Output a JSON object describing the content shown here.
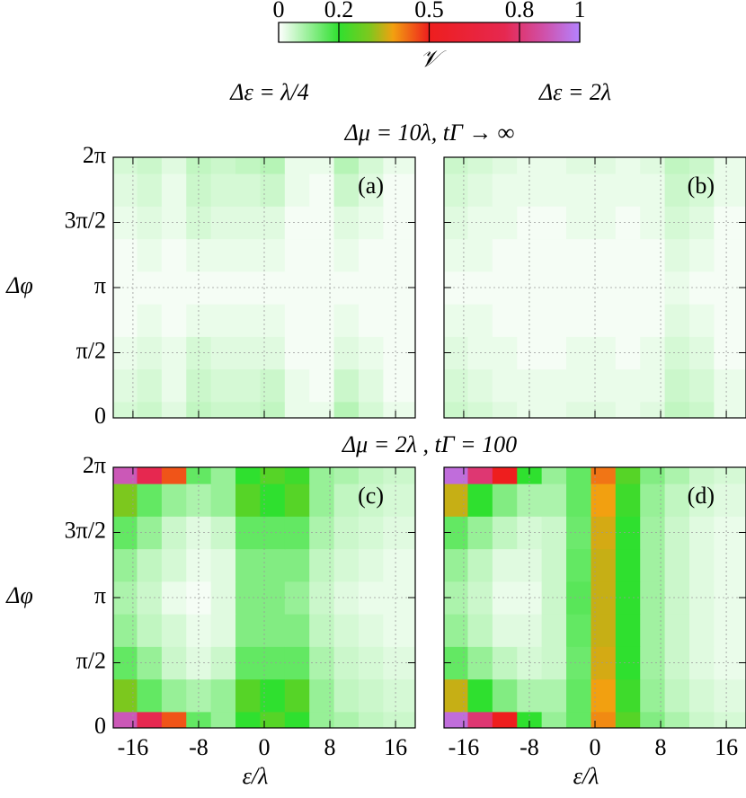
{
  "figure": {
    "colorbar": {
      "label": "𝒱",
      "lim": [
        0,
        1
      ],
      "ticks": [
        0,
        0.2,
        0.5,
        0.8,
        1
      ]
    },
    "colormap": [
      [
        0,
        "#ffffff"
      ],
      [
        0.2,
        "#2fe02f"
      ],
      [
        0.3,
        "#7cc81e"
      ],
      [
        0.38,
        "#f2a010"
      ],
      [
        0.5,
        "#ee1e1e"
      ],
      [
        0.75,
        "#e62850"
      ],
      [
        0.88,
        "#d050a8"
      ],
      [
        1,
        "#b482ff"
      ]
    ],
    "column_titles": [
      "Δε = λ/4",
      "Δε = 2λ"
    ],
    "row_titles": [
      "Δμ = 10λ, tΓ → ∞",
      "Δμ = 2λ , tΓ = 100"
    ]
  },
  "chart_data": [
    {
      "type": "heatmap",
      "label": "(a)",
      "ylabel": "Δφ",
      "x": [
        -17,
        -14,
        -11,
        -8,
        -5,
        -2,
        1,
        4,
        7,
        10,
        13,
        16
      ],
      "y": [
        0,
        0.785,
        1.571,
        2.356,
        3.142,
        3.927,
        4.712,
        5.498,
        6.283
      ],
      "z": [
        [
          0.04,
          0.05,
          0.03,
          0.06,
          0.05,
          0.05,
          0.06,
          0.02,
          0.02,
          0.07,
          0.04,
          0.02
        ],
        [
          0.03,
          0.04,
          0.02,
          0.05,
          0.04,
          0.04,
          0.05,
          0.02,
          0.01,
          0.05,
          0.03,
          0.01
        ],
        [
          0.02,
          0.03,
          0.02,
          0.04,
          0.03,
          0.03,
          0.03,
          0.01,
          0.01,
          0.03,
          0.02,
          0.01
        ],
        [
          0.01,
          0.02,
          0.01,
          0.02,
          0.02,
          0.02,
          0.02,
          0.01,
          0.01,
          0.02,
          0.01,
          0.01
        ],
        [
          0.01,
          0.01,
          0.01,
          0.01,
          0.01,
          0.01,
          0.01,
          0.01,
          0.01,
          0.01,
          0.01,
          0.01
        ],
        [
          0.01,
          0.02,
          0.01,
          0.02,
          0.02,
          0.02,
          0.02,
          0.01,
          0.01,
          0.02,
          0.01,
          0.01
        ],
        [
          0.02,
          0.03,
          0.02,
          0.04,
          0.03,
          0.03,
          0.03,
          0.01,
          0.01,
          0.03,
          0.02,
          0.01
        ],
        [
          0.03,
          0.04,
          0.02,
          0.05,
          0.04,
          0.04,
          0.05,
          0.02,
          0.01,
          0.05,
          0.03,
          0.01
        ],
        [
          0.04,
          0.05,
          0.03,
          0.06,
          0.05,
          0.06,
          0.07,
          0.02,
          0.02,
          0.07,
          0.04,
          0.02
        ]
      ],
      "xlim": [
        -18.4,
        18.4
      ],
      "ylim": [
        0,
        6.2832
      ],
      "xticks": [
        -16,
        -8,
        0,
        8,
        16
      ],
      "yticks": [
        0,
        {
          "value": 1.5708,
          "label": "π/2"
        },
        {
          "value": 3.1416,
          "label": "π"
        },
        {
          "value": 4.7124,
          "label": "3π/2"
        },
        {
          "value": 6.2832,
          "label": "2π"
        }
      ],
      "xtick_labels": false,
      "ytick_labels": true,
      "grid": true
    },
    {
      "type": "heatmap",
      "label": "(b)",
      "x": [
        -17,
        -14,
        -11,
        -8,
        -5,
        -2,
        1,
        4,
        7,
        10,
        13,
        16
      ],
      "y": [
        0,
        0.785,
        1.571,
        2.356,
        3.142,
        3.927,
        4.712,
        5.498,
        6.283
      ],
      "z": [
        [
          0.05,
          0.04,
          0.03,
          0.02,
          0.02,
          0.03,
          0.03,
          0.02,
          0.03,
          0.06,
          0.05,
          0.02
        ],
        [
          0.04,
          0.03,
          0.02,
          0.02,
          0.02,
          0.02,
          0.02,
          0.02,
          0.02,
          0.05,
          0.04,
          0.02
        ],
        [
          0.03,
          0.02,
          0.02,
          0.01,
          0.01,
          0.02,
          0.02,
          0.01,
          0.02,
          0.04,
          0.03,
          0.01
        ],
        [
          0.02,
          0.02,
          0.01,
          0.01,
          0.01,
          0.01,
          0.01,
          0.01,
          0.01,
          0.03,
          0.02,
          0.01
        ],
        [
          0.01,
          0.01,
          0.01,
          0.01,
          0.01,
          0.01,
          0.01,
          0.01,
          0.01,
          0.02,
          0.01,
          0.01
        ],
        [
          0.02,
          0.02,
          0.01,
          0.01,
          0.01,
          0.01,
          0.01,
          0.01,
          0.01,
          0.03,
          0.02,
          0.01
        ],
        [
          0.03,
          0.02,
          0.02,
          0.01,
          0.01,
          0.02,
          0.02,
          0.01,
          0.02,
          0.04,
          0.03,
          0.01
        ],
        [
          0.04,
          0.03,
          0.02,
          0.02,
          0.02,
          0.02,
          0.02,
          0.02,
          0.02,
          0.05,
          0.04,
          0.02
        ],
        [
          0.05,
          0.04,
          0.03,
          0.02,
          0.02,
          0.03,
          0.03,
          0.02,
          0.03,
          0.06,
          0.05,
          0.02
        ]
      ],
      "xlim": [
        -18.4,
        18.4
      ],
      "ylim": [
        0,
        6.2832
      ],
      "xticks": [
        -16,
        -8,
        0,
        8,
        16
      ],
      "yticks": [
        0,
        1.5708,
        3.1416,
        4.7124,
        6.2832
      ],
      "xtick_labels": false,
      "ytick_labels": false,
      "grid": true
    },
    {
      "type": "heatmap",
      "label": "(c)",
      "ylabel": "Δφ",
      "xlabel": "ε/λ",
      "x": [
        -17,
        -14,
        -11,
        -8,
        -5,
        -2,
        1,
        4,
        7,
        10,
        13,
        16
      ],
      "y": [
        0,
        0.785,
        1.571,
        2.356,
        3.142,
        3.927,
        4.712,
        5.498,
        6.283
      ],
      "z": [
        [
          0.9,
          0.75,
          0.45,
          0.15,
          0.1,
          0.2,
          0.25,
          0.2,
          0.1,
          0.08,
          0.06,
          0.05
        ],
        [
          0.3,
          0.15,
          0.1,
          0.08,
          0.1,
          0.25,
          0.2,
          0.25,
          0.1,
          0.06,
          0.05,
          0.04
        ],
        [
          0.15,
          0.1,
          0.05,
          0.03,
          0.05,
          0.15,
          0.15,
          0.15,
          0.08,
          0.05,
          0.04,
          0.03
        ],
        [
          0.1,
          0.06,
          0.04,
          0.02,
          0.03,
          0.12,
          0.12,
          0.12,
          0.06,
          0.04,
          0.03,
          0.02
        ],
        [
          0.08,
          0.05,
          0.02,
          0.01,
          0.03,
          0.12,
          0.12,
          0.1,
          0.05,
          0.03,
          0.02,
          0.02
        ],
        [
          0.1,
          0.06,
          0.04,
          0.02,
          0.03,
          0.12,
          0.12,
          0.12,
          0.06,
          0.04,
          0.03,
          0.02
        ],
        [
          0.15,
          0.1,
          0.05,
          0.03,
          0.05,
          0.15,
          0.15,
          0.15,
          0.08,
          0.05,
          0.04,
          0.03
        ],
        [
          0.3,
          0.15,
          0.1,
          0.08,
          0.1,
          0.25,
          0.2,
          0.25,
          0.1,
          0.06,
          0.05,
          0.04
        ],
        [
          0.9,
          0.75,
          0.45,
          0.15,
          0.1,
          0.2,
          0.25,
          0.22,
          0.1,
          0.08,
          0.06,
          0.05
        ]
      ],
      "xlim": [
        -18.4,
        18.4
      ],
      "ylim": [
        0,
        6.2832
      ],
      "xticks": [
        -16,
        -8,
        0,
        8,
        16
      ],
      "yticks": [
        0,
        {
          "value": 1.5708,
          "label": "π/2"
        },
        {
          "value": 3.1416,
          "label": "π"
        },
        {
          "value": 4.7124,
          "label": "3π/2"
        },
        {
          "value": 6.2832,
          "label": "2π"
        }
      ],
      "xtick_labels": true,
      "ytick_labels": true,
      "grid": true
    },
    {
      "type": "heatmap",
      "label": "(d)",
      "xlabel": "ε/λ",
      "x": [
        -17,
        -14,
        -11,
        -8,
        -5,
        -2,
        1,
        4,
        7,
        10,
        13,
        16
      ],
      "y": [
        0,
        0.785,
        1.571,
        2.356,
        3.142,
        3.927,
        4.712,
        5.498,
        6.283
      ],
      "z": [
        [
          0.95,
          0.8,
          0.5,
          0.2,
          0.1,
          0.15,
          0.4,
          0.25,
          0.12,
          0.08,
          0.05,
          0.04
        ],
        [
          0.35,
          0.2,
          0.12,
          0.08,
          0.08,
          0.15,
          0.38,
          0.22,
          0.1,
          0.06,
          0.04,
          0.03
        ],
        [
          0.15,
          0.1,
          0.06,
          0.04,
          0.05,
          0.14,
          0.36,
          0.2,
          0.09,
          0.05,
          0.03,
          0.02
        ],
        [
          0.1,
          0.06,
          0.03,
          0.03,
          0.05,
          0.15,
          0.35,
          0.2,
          0.09,
          0.05,
          0.03,
          0.02
        ],
        [
          0.08,
          0.05,
          0.02,
          0.02,
          0.05,
          0.16,
          0.35,
          0.2,
          0.09,
          0.05,
          0.03,
          0.02
        ],
        [
          0.1,
          0.06,
          0.03,
          0.03,
          0.05,
          0.15,
          0.35,
          0.2,
          0.09,
          0.05,
          0.03,
          0.02
        ],
        [
          0.15,
          0.1,
          0.06,
          0.04,
          0.05,
          0.14,
          0.36,
          0.2,
          0.09,
          0.05,
          0.03,
          0.02
        ],
        [
          0.35,
          0.2,
          0.12,
          0.08,
          0.08,
          0.15,
          0.38,
          0.22,
          0.1,
          0.06,
          0.04,
          0.03
        ],
        [
          0.95,
          0.8,
          0.5,
          0.2,
          0.1,
          0.15,
          0.42,
          0.25,
          0.12,
          0.08,
          0.05,
          0.04
        ]
      ],
      "xlim": [
        -18.4,
        18.4
      ],
      "ylim": [
        0,
        6.2832
      ],
      "xticks": [
        -16,
        -8,
        0,
        8,
        16
      ],
      "yticks": [
        0,
        1.5708,
        3.1416,
        4.7124,
        6.2832
      ],
      "xtick_labels": true,
      "ytick_labels": false,
      "grid": true
    }
  ]
}
